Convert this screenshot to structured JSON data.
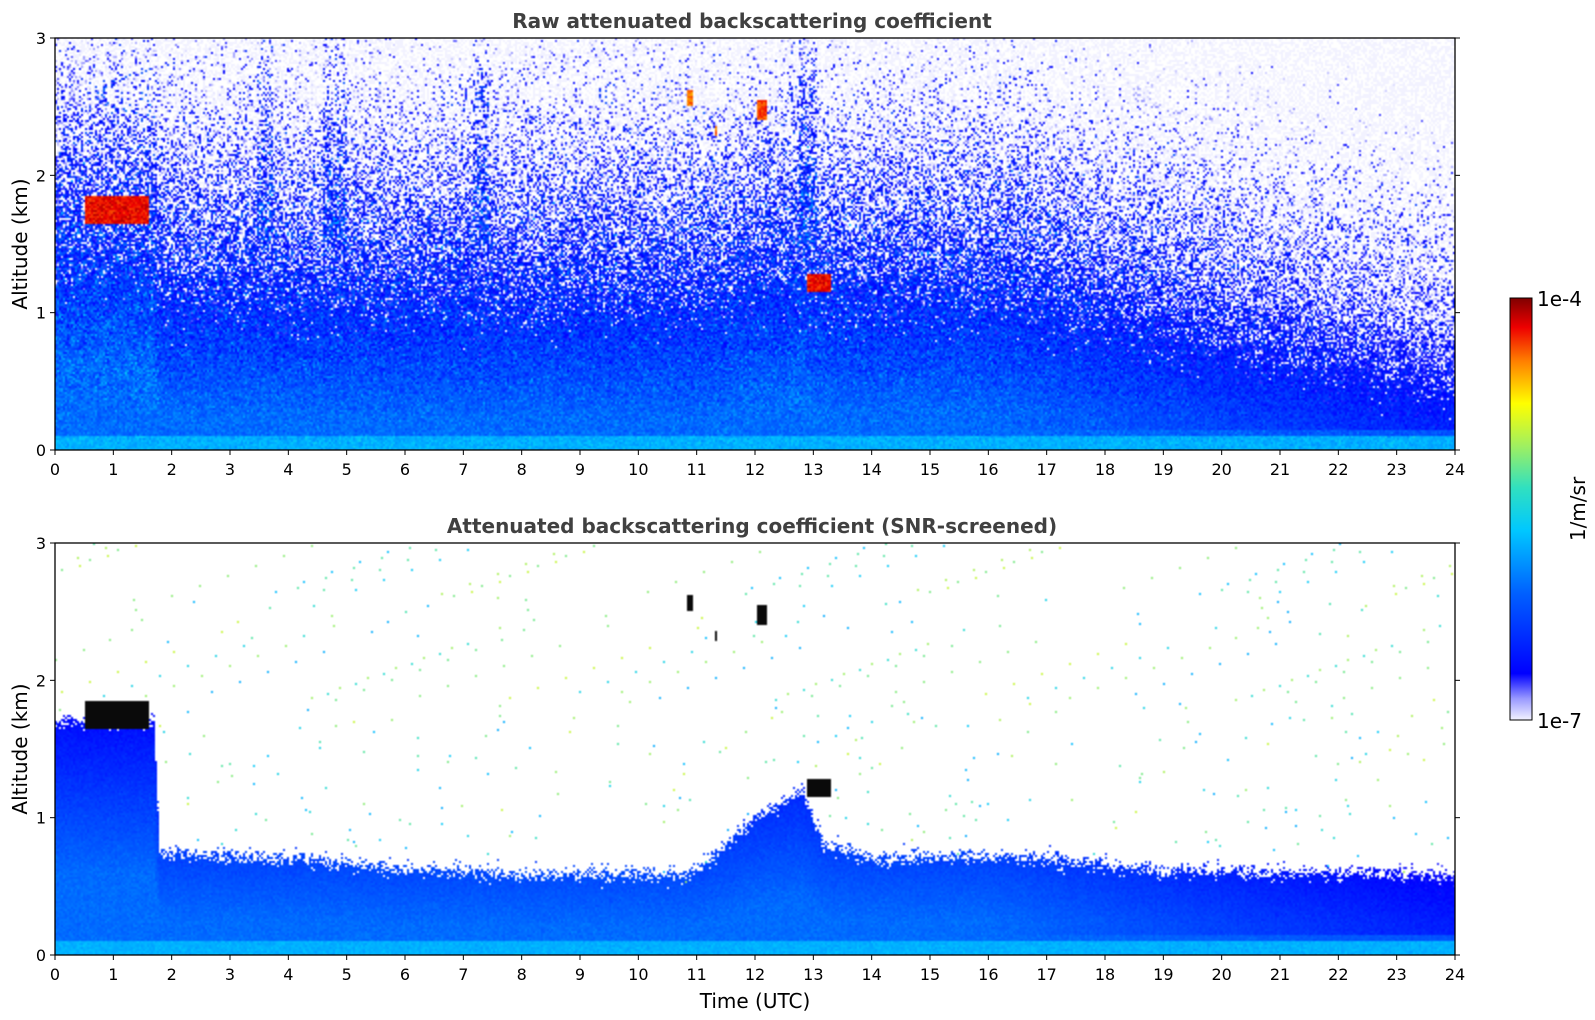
{
  "chart_data": [
    {
      "type": "heatmap",
      "title": "Raw attenuated backscattering coefficient",
      "xlabel": "",
      "ylabel": "Altitude (km)",
      "xlim": [
        0,
        24
      ],
      "ylim": [
        0,
        3
      ],
      "xticks": [
        "0",
        "1",
        "2",
        "3",
        "4",
        "5",
        "6",
        "7",
        "8",
        "9",
        "10",
        "11",
        "12",
        "13",
        "14",
        "15",
        "16",
        "17",
        "18",
        "19",
        "20",
        "21",
        "22",
        "23",
        "24"
      ],
      "yticks": [
        "0",
        "1",
        "2",
        "3"
      ],
      "grid": false,
      "screened": false,
      "features": [
        {
          "kind": "cloud",
          "x_range": [
            0.5,
            1.6
          ],
          "y_range": [
            1.65,
            1.85
          ],
          "log10_value": -4.1
        },
        {
          "kind": "cloud",
          "x_range": [
            12.9,
            13.3
          ],
          "y_range": [
            1.15,
            1.28
          ],
          "log10_value": -4.1
        },
        {
          "kind": "cloud",
          "x_range": [
            12.05,
            12.2
          ],
          "y_range": [
            2.4,
            2.55
          ],
          "log10_value": -4.2
        },
        {
          "kind": "cloud",
          "x_range": [
            10.85,
            10.95
          ],
          "y_range": [
            2.5,
            2.62
          ],
          "log10_value": -4.3
        },
        {
          "kind": "cloud",
          "x_range": [
            11.3,
            11.35
          ],
          "y_range": [
            2.28,
            2.36
          ],
          "log10_value": -4.3
        }
      ]
    },
    {
      "type": "heatmap",
      "title": "Attenuated backscattering coefficient (SNR-screened)",
      "xlabel": "Time (UTC)",
      "ylabel": "Altitude (km)",
      "xlim": [
        0,
        24
      ],
      "ylim": [
        0,
        3
      ],
      "xticks": [
        "0",
        "1",
        "2",
        "3",
        "4",
        "5",
        "6",
        "7",
        "8",
        "9",
        "10",
        "11",
        "12",
        "13",
        "14",
        "15",
        "16",
        "17",
        "18",
        "19",
        "20",
        "21",
        "22",
        "23",
        "24"
      ],
      "yticks": [
        "0",
        "1",
        "2",
        "3"
      ],
      "grid": false,
      "screened": true,
      "boundary_layer_top_km": [
        [
          0,
          1.7
        ],
        [
          1.7,
          1.7
        ],
        [
          1.8,
          0.75
        ],
        [
          3,
          0.72
        ],
        [
          5,
          0.68
        ],
        [
          6,
          0.62
        ],
        [
          7,
          0.62
        ],
        [
          8,
          0.58
        ],
        [
          9,
          0.6
        ],
        [
          10,
          0.58
        ],
        [
          11,
          0.6
        ],
        [
          12,
          1.0
        ],
        [
          12.8,
          1.2
        ],
        [
          13.2,
          0.8
        ],
        [
          14,
          0.7
        ],
        [
          15,
          0.72
        ],
        [
          17,
          0.7
        ],
        [
          19,
          0.62
        ],
        [
          21,
          0.6
        ],
        [
          24,
          0.58
        ]
      ]
    }
  ],
  "colorbar": {
    "label": "1/m/sr",
    "max_label": "1e-4",
    "min_label": "1e-7",
    "log10_min": -7,
    "log10_max": -4,
    "colormap": "jet-like with light blue-white low end"
  }
}
